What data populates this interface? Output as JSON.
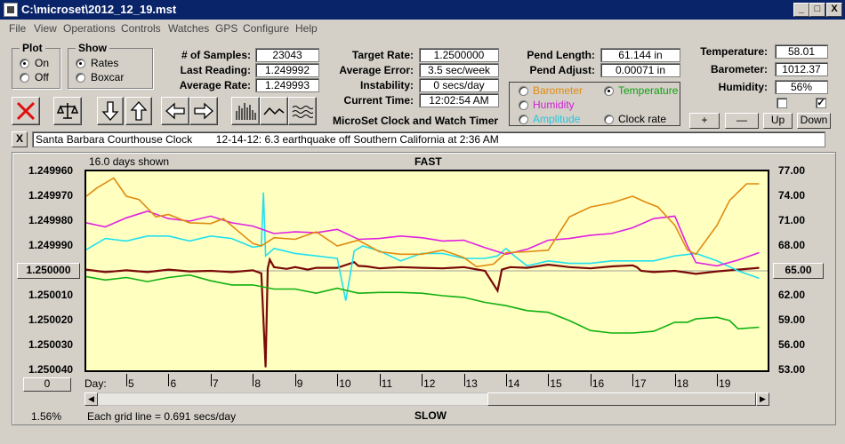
{
  "window": {
    "title": "C:\\microset\\2012_12_19.mst",
    "min": "_",
    "max": "□",
    "close": "X"
  },
  "menu": [
    "File",
    "View",
    "Operations",
    "Controls",
    "Watches",
    "GPS",
    "Configure",
    "Help"
  ],
  "plot_group": {
    "title": "Plot",
    "on": "On",
    "off": "Off",
    "selected": "On"
  },
  "show_group": {
    "title": "Show",
    "rates": "Rates",
    "boxcar": "Boxcar",
    "selected": "Rates"
  },
  "stats": {
    "samples_label": "# of Samples:",
    "samples": "23043",
    "last_label": "Last Reading:",
    "last": "1.249992",
    "avg_label": "Average Rate:",
    "avg": "1.249993",
    "target_label": "Target Rate:",
    "target": "1.2500000",
    "avgerr_label": "Average Error:",
    "avgerr": "3.5 sec/week",
    "instab_label": "Instability:",
    "instab": "0 secs/day",
    "time_label": "Current Time:",
    "time": "12:02:54 AM",
    "pendlen_label": "Pend Length:",
    "pendlen": "61.144 in",
    "pendadj_label": "Pend Adjust:",
    "pendadj": "0.00071 in",
    "temp_label": "Temperature:",
    "temp": "58.01",
    "baro_label": "Barometer:",
    "baro": "1012.37",
    "hum_label": "Humidity:",
    "hum": "56%"
  },
  "series_select": {
    "barometer": "Barometer",
    "temperature": "Temperature",
    "humidity": "Humidity",
    "amplitude": "Amplitude",
    "clockrate": "Clock rate",
    "selected": "Temperature"
  },
  "app_title": "MicroSet Clock and Watch Timer",
  "buttons": {
    "plus": "+",
    "minus": "—",
    "up": "Up",
    "down": "Down",
    "close_msg": "X"
  },
  "checks": {
    "a": false,
    "b": true
  },
  "message": "Santa Barbara Courthouse Clock        12-14-12: 6.3 earthquake off Southern California at 2:36 AM",
  "chart": {
    "days_shown": "16.0 days shown",
    "top_label": "FAST",
    "bottom_label": "SLOW",
    "grid_note": "Each grid line = 0.691 secs/day",
    "left_pct": "1.56%",
    "center_left": "1.250000",
    "center_right": "65.00",
    "zero_btn": "0",
    "day_label": "Day:"
  },
  "chart_data": {
    "type": "line",
    "xlabel": "Day:",
    "xlim": [
      4.05,
      20.2
    ],
    "x_ticks": [
      5,
      6,
      7,
      8,
      9,
      10,
      11,
      12,
      13,
      14,
      15,
      16,
      17,
      18,
      19
    ],
    "ylim_left": [
      1.24996,
      1.25004
    ],
    "y_ticks_left": [
      "1.249960",
      "1.249970",
      "1.249980",
      "1.249990",
      "1.250000",
      "1.250010",
      "1.250020",
      "1.250030",
      "1.250040"
    ],
    "ylim_right": [
      77,
      53
    ],
    "y_ticks_right": [
      "77.00",
      "74.00",
      "71.00",
      "68.00",
      "65.00",
      "62.00",
      "59.00",
      "56.00",
      "53.00"
    ],
    "series": [
      {
        "name": "Clock rate",
        "color": "#7a0a0a",
        "x": [
          4.05,
          4.5,
          5,
          5.5,
          6,
          6.5,
          7,
          7.5,
          8,
          8.2,
          8.3,
          8.35,
          8.4,
          8.5,
          8.8,
          9,
          9.3,
          9.5,
          10,
          10.4,
          10.5,
          10.7,
          11,
          11.5,
          12,
          12.5,
          13,
          13.5,
          13.8,
          13.9,
          14,
          14.1,
          14.5,
          15,
          15.5,
          16,
          16.5,
          17,
          17.1,
          17.2,
          17.5,
          18,
          18.5,
          19,
          19.5,
          20
        ],
        "values": [
          1.2499995,
          1.2500005,
          1.2499998,
          1.2500005,
          1.2499995,
          1.2500002,
          1.25,
          1.2500005,
          1.2499998,
          1.250001,
          1.2500388,
          1.249999,
          1.2499955,
          1.2499985,
          1.2499992,
          1.2499985,
          1.2499995,
          1.2499988,
          1.2499988,
          1.2499965,
          1.249998,
          1.2499982,
          1.249999,
          1.2499985,
          1.2499988,
          1.249999,
          1.2499985,
          1.25,
          1.250008,
          1.2499995,
          1.249999,
          1.2499985,
          1.2499988,
          1.2499975,
          1.2499985,
          1.249999,
          1.2499982,
          1.2499978,
          1.2499985,
          1.25,
          1.2500005,
          1.25,
          1.2500012,
          1.2500002,
          1.2499995,
          1.2499988
        ]
      },
      {
        "name": "Amplitude",
        "color": "#20e0f0",
        "x": [
          4.05,
          4.5,
          5,
          5.5,
          6,
          6.5,
          7,
          7.5,
          8,
          8.2,
          8.25,
          8.3,
          8.5,
          9,
          9.5,
          10,
          10.2,
          10.4,
          10.6,
          11,
          11.5,
          12,
          12.5,
          13,
          13.5,
          13.8,
          14,
          14.2,
          14.5,
          15,
          15.5,
          16,
          16.5,
          17,
          17.5,
          18,
          18.5,
          19,
          19.5,
          20
        ],
        "values": [
          1.2499915,
          1.249987,
          1.249988,
          1.249986,
          1.249986,
          1.249988,
          1.249986,
          1.249987,
          1.2499905,
          1.24999,
          1.2499685,
          1.249994,
          1.249991,
          1.249993,
          1.249994,
          1.249995,
          1.250012,
          1.249992,
          1.24999,
          1.249992,
          1.249996,
          1.249993,
          1.249993,
          1.249995,
          1.249995,
          1.249994,
          1.249991,
          1.249994,
          1.249998,
          1.249996,
          1.249997,
          1.249997,
          1.249996,
          1.249996,
          1.249996,
          1.249994,
          1.249993,
          1.249996,
          1.25,
          1.250003
        ]
      },
      {
        "name": "Humidity",
        "color": "#e020e0",
        "x": [
          4.05,
          4.5,
          5,
          5.5,
          6,
          6.5,
          7,
          7.5,
          8,
          8.5,
          9,
          9.5,
          10,
          10.5,
          11,
          11.5,
          12,
          12.5,
          13,
          13.5,
          14,
          14.5,
          15,
          15.5,
          16,
          16.5,
          17,
          17.5,
          18,
          18.3,
          18.5,
          19,
          19.5,
          20
        ],
        "values": [
          70.8,
          70.3,
          71.4,
          72.2,
          71.3,
          71.0,
          71.6,
          70.8,
          70.4,
          69.5,
          69.7,
          69.6,
          70.0,
          68.8,
          68.9,
          69.2,
          69.0,
          68.6,
          68.7,
          67.8,
          67.0,
          67.6,
          68.7,
          68.9,
          69.3,
          69.5,
          70.2,
          71.3,
          71.6,
          68.0,
          66.0,
          65.6,
          66.3,
          67.2
        ]
      },
      {
        "name": "Barometer",
        "color": "#e08a10",
        "x": [
          4.05,
          4.3,
          4.7,
          5,
          5.3,
          5.7,
          6,
          6.5,
          7,
          7.3,
          7.6,
          8,
          8.2,
          8.5,
          9,
          9.5,
          10,
          10.5,
          11,
          11.5,
          12,
          12.5,
          13,
          13.3,
          13.7,
          14,
          14.5,
          15,
          15.5,
          16,
          16.5,
          17,
          17.3,
          17.6,
          18,
          18.3,
          18.5,
          19,
          19.3,
          19.7,
          20
        ],
        "values": [
          74.0,
          75.0,
          76.2,
          74.0,
          73.6,
          71.5,
          71.8,
          70.8,
          70.7,
          71.3,
          70.0,
          68.3,
          68.0,
          69.0,
          68.8,
          69.7,
          68.0,
          68.7,
          67.3,
          67.0,
          67.0,
          67.5,
          66.6,
          65.5,
          65.8,
          67.2,
          67.3,
          67.5,
          71.5,
          72.7,
          73.2,
          74.0,
          73.3,
          72.7,
          70.5,
          67.5,
          67.0,
          70.5,
          73.5,
          75.5,
          75.5
        ]
      },
      {
        "name": "Temperature",
        "color": "#10b010",
        "x": [
          4.05,
          4.5,
          5,
          5.5,
          6,
          6.5,
          7,
          7.5,
          8,
          8.5,
          9,
          9.5,
          10,
          10.5,
          11,
          11.5,
          12,
          12.5,
          13,
          13.5,
          14,
          14.5,
          15,
          15.5,
          16,
          16.5,
          17,
          17.5,
          18,
          18.3,
          18.5,
          19,
          19.3,
          19.5,
          20
        ],
        "values": [
          64.3,
          63.9,
          64.2,
          63.7,
          64.2,
          64.5,
          63.8,
          63.3,
          63.3,
          62.8,
          62.8,
          62.3,
          62.9,
          62.3,
          62.4,
          62.4,
          62.3,
          62.0,
          61.8,
          61.2,
          60.8,
          60.2,
          60.0,
          59.0,
          57.8,
          57.5,
          57.5,
          57.7,
          58.8,
          58.8,
          59.2,
          59.4,
          59.0,
          58.0,
          58.2
        ]
      }
    ]
  }
}
